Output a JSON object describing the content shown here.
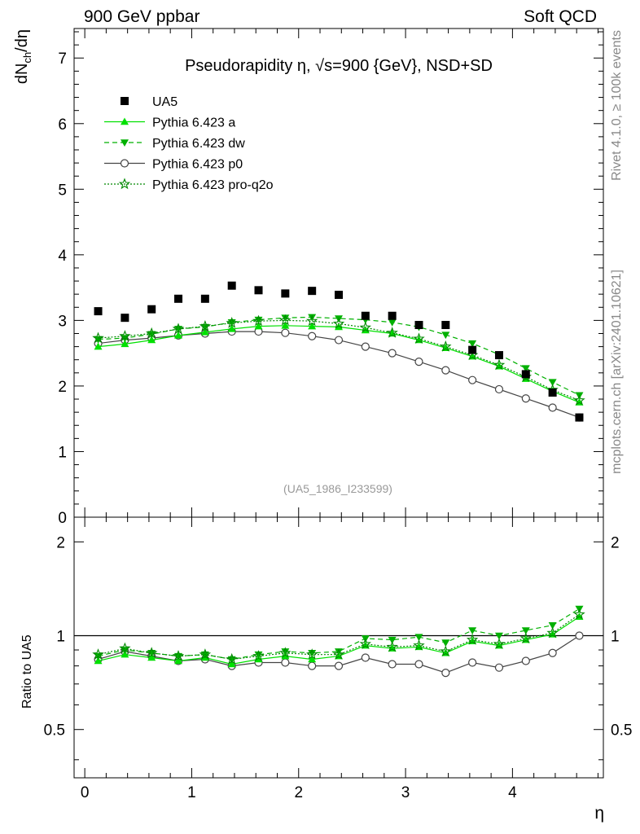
{
  "header": {
    "left": "900 GeV ppbar",
    "right": "Soft QCD"
  },
  "side_labels": {
    "rivet": "Rivet 4.1.0, ≥ 100k events",
    "mcplots": "mcplots.cern.ch [arXiv:2401.10621]"
  },
  "chart_data": [
    {
      "type": "scatter",
      "panel": "main",
      "title": "Pseudorapidity η, √s=900 {GeV}, NSD+SD",
      "ylabel": "dN_ch/dη",
      "xlabel": "η",
      "watermark": "(UA5_1986_I233599)",
      "xlim": [
        -0.1,
        4.85
      ],
      "ylim": [
        0,
        7.45
      ],
      "yticks": [
        "0",
        "1",
        "2",
        "3",
        "4",
        "5",
        "6",
        "7"
      ],
      "legend_position": "top-left",
      "x": [
        0.125,
        0.375,
        0.625,
        0.875,
        1.125,
        1.375,
        1.625,
        1.875,
        2.125,
        2.375,
        2.625,
        2.875,
        3.125,
        3.375,
        3.625,
        3.875,
        4.125,
        4.375,
        4.625
      ],
      "series": [
        {
          "name": "UA5",
          "color": "#000000",
          "style": "data-square",
          "values": [
            3.14,
            3.04,
            3.17,
            3.33,
            3.33,
            3.53,
            3.46,
            3.41,
            3.45,
            3.39,
            3.07,
            3.07,
            2.93,
            2.93,
            2.55,
            2.47,
            2.18,
            1.9,
            1.52
          ]
        },
        {
          "name": "Pythia 6.423 a",
          "color": "#00e000",
          "style": "solid-triangle-up",
          "values": [
            2.6,
            2.64,
            2.7,
            2.77,
            2.82,
            2.87,
            2.91,
            2.92,
            2.91,
            2.9,
            2.85,
            2.8,
            2.7,
            2.58,
            2.45,
            2.3,
            2.11,
            1.92,
            1.75
          ]
        },
        {
          "name": "Pythia 6.423 dw",
          "color": "#00b000",
          "style": "dashed-triangle-down",
          "values": [
            2.71,
            2.73,
            2.79,
            2.87,
            2.9,
            2.97,
            3.01,
            3.04,
            3.05,
            3.03,
            3.01,
            2.97,
            2.9,
            2.78,
            2.65,
            2.48,
            2.27,
            2.06,
            1.86
          ]
        },
        {
          "name": "Pythia 6.423 p0",
          "color": "#444444",
          "style": "solid-open-circle",
          "values": [
            2.65,
            2.7,
            2.73,
            2.77,
            2.8,
            2.83,
            2.83,
            2.81,
            2.76,
            2.7,
            2.6,
            2.5,
            2.37,
            2.24,
            2.09,
            1.95,
            1.81,
            1.67,
            1.52
          ]
        },
        {
          "name": "Pythia 6.423 pro-q2o",
          "color": "#008800",
          "style": "dotted-star",
          "values": [
            2.73,
            2.76,
            2.8,
            2.87,
            2.91,
            2.96,
            2.99,
            3.0,
            2.99,
            2.95,
            2.89,
            2.81,
            2.72,
            2.6,
            2.47,
            2.32,
            2.14,
            1.94,
            1.78
          ]
        }
      ]
    },
    {
      "type": "line",
      "panel": "ratio",
      "ylabel": "Ratio to UA5",
      "xlabel": "η",
      "xlim": [
        -0.1,
        4.85
      ],
      "ylim": [
        0.35,
        2.4
      ],
      "yticks": [
        "0.5",
        "1",
        "2"
      ],
      "xticks": [
        "0",
        "1",
        "2",
        "3",
        "4"
      ],
      "reference_line": 1,
      "x": [
        0.125,
        0.375,
        0.625,
        0.875,
        1.125,
        1.375,
        1.625,
        1.875,
        2.125,
        2.375,
        2.625,
        2.875,
        3.125,
        3.375,
        3.625,
        3.875,
        4.125,
        4.375,
        4.625
      ],
      "series": [
        {
          "name": "Pythia 6.423 a",
          "color": "#00e000",
          "style": "solid-triangle-up",
          "values": [
            0.83,
            0.87,
            0.85,
            0.83,
            0.85,
            0.81,
            0.84,
            0.86,
            0.84,
            0.86,
            0.93,
            0.91,
            0.92,
            0.88,
            0.96,
            0.93,
            0.97,
            1.01,
            1.15
          ]
        },
        {
          "name": "Pythia 6.423 dw",
          "color": "#00b000",
          "style": "dashed-triangle-down",
          "values": [
            0.86,
            0.9,
            0.88,
            0.86,
            0.87,
            0.84,
            0.87,
            0.89,
            0.88,
            0.89,
            0.98,
            0.97,
            0.99,
            0.95,
            1.04,
            1.0,
            1.04,
            1.08,
            1.22
          ]
        },
        {
          "name": "Pythia 6.423 p0",
          "color": "#444444",
          "style": "solid-open-circle",
          "values": [
            0.84,
            0.89,
            0.86,
            0.83,
            0.84,
            0.8,
            0.82,
            0.82,
            0.8,
            0.8,
            0.85,
            0.81,
            0.81,
            0.76,
            0.82,
            0.79,
            0.83,
            0.88,
            1.0
          ]
        },
        {
          "name": "Pythia 6.423 pro-q2o",
          "color": "#008800",
          "style": "dotted-star",
          "values": [
            0.87,
            0.91,
            0.88,
            0.86,
            0.87,
            0.84,
            0.86,
            0.88,
            0.87,
            0.87,
            0.94,
            0.92,
            0.93,
            0.89,
            0.97,
            0.94,
            0.98,
            1.02,
            1.17
          ]
        }
      ]
    }
  ]
}
